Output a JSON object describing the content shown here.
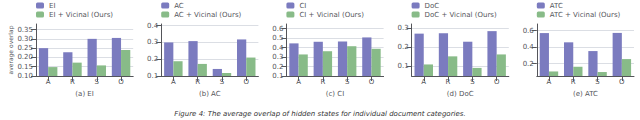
{
  "chart_data": [
    {
      "type": "bar",
      "xlabel": "(a) EI",
      "ylabel": "average overlap",
      "annotations": [
        "Figure 4: The average overlap of hidden states for individual document categories."
      ],
      "categories": [
        "A",
        "R",
        "S",
        "O"
      ],
      "series": [
        {
          "name": "EI",
          "color": "#7b7bbf",
          "values": [
            0.25,
            0.228,
            0.3,
            0.305
          ]
        },
        {
          "name": "EI + Vicinal (Ours)",
          "color": "#88bb88",
          "values": [
            0.148,
            0.172,
            0.157,
            0.24
          ]
        }
      ],
      "ylim": [
        0.1,
        0.38
      ],
      "yticks": [
        {
          "value": 0.1,
          "label": "0.10"
        },
        0.15,
        {
          "value": 0.2,
          "label": "0.20"
        },
        0.25,
        {
          "value": 0.3,
          "label": "0.30"
        },
        0.35
      ],
      "grid": true,
      "legend": "upper left"
    },
    {
      "type": "bar",
      "xlabel": "(b) AC",
      "categories": [
        "A",
        "R",
        "S",
        "O"
      ],
      "series": [
        {
          "name": "AC",
          "color": "#7b7bbf",
          "values": [
            0.3,
            0.308,
            0.142,
            0.318
          ]
        },
        {
          "name": "AC + Vicinal (Ours)",
          "color": "#88bb88",
          "values": [
            0.188,
            0.172,
            0.118,
            0.21
          ]
        }
      ],
      "ylim": [
        0.1,
        0.41
      ],
      "yticks": [
        0.1,
        0.2,
        0.3,
        0.4
      ],
      "grid": true,
      "legend": "upper left"
    },
    {
      "type": "bar",
      "xlabel": "(c) CI",
      "categories": [
        "A",
        "R",
        "S",
        "O"
      ],
      "series": [
        {
          "name": "CI",
          "color": "#7b7bbf",
          "values": [
            0.445,
            0.462,
            0.465,
            0.508
          ]
        },
        {
          "name": "CI + Vicinal (Ours)",
          "color": "#88bb88",
          "values": [
            0.328,
            0.362,
            0.415,
            0.388
          ]
        }
      ],
      "ylim": [
        0.1,
        0.65
      ],
      "yticks": [
        0.1,
        0.2,
        0.3,
        0.4,
        0.5,
        0.6
      ],
      "grid": true,
      "legend": "upper left"
    },
    {
      "type": "bar",
      "xlabel": "(d) DoC",
      "categories": [
        "A",
        "R",
        "S",
        "O"
      ],
      "series": [
        {
          "name": "DoC",
          "color": "#7b7bbf",
          "values": [
            0.27,
            0.272,
            0.228,
            0.283
          ]
        },
        {
          "name": "DoC + Vicinal (Ours)",
          "color": "#88bb88",
          "values": [
            0.11,
            0.152,
            0.092,
            0.162
          ]
        }
      ],
      "ylim": [
        0.05,
        0.32
      ],
      "yticks": [
        0.1,
        0.2,
        0.3
      ],
      "grid": true,
      "legend": "upper left"
    },
    {
      "type": "bar",
      "xlabel": "(e) ATC",
      "categories": [
        "A",
        "R",
        "S",
        "O"
      ],
      "series": [
        {
          "name": "ATC",
          "color": "#7b7bbf",
          "values": [
            0.57,
            0.458,
            0.352,
            0.572
          ]
        },
        {
          "name": "ATC + Vicinal (Ours)",
          "color": "#88bb88",
          "values": [
            0.105,
            0.162,
            0.098,
            0.255
          ]
        }
      ],
      "ylim": [
        0.05,
        0.68
      ],
      "yticks": [
        0.2,
        0.4,
        0.6
      ],
      "grid": true,
      "legend": "upper left"
    }
  ]
}
